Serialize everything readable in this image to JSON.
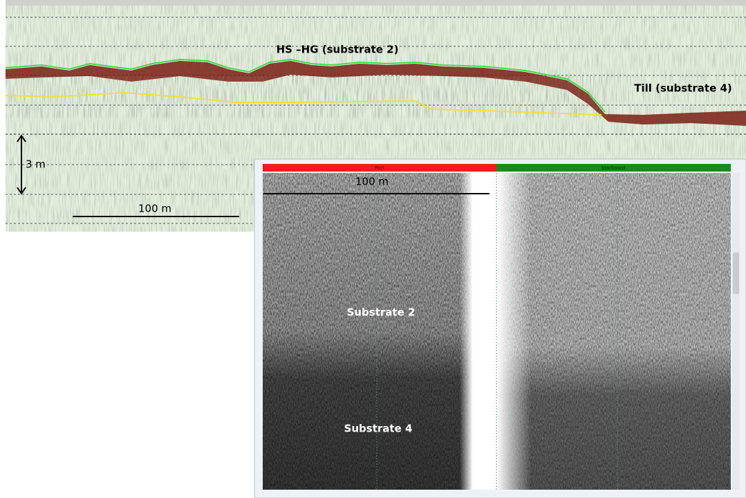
{
  "profile": {
    "top_label": "HS –HG (substrate 2)",
    "right_label": "Till (substrate 4)",
    "depth_scale": "3 m",
    "distance_scale": "100 m"
  },
  "sonar": {
    "port": "Port",
    "starboard": "Starboard",
    "distance_scale": "100 m",
    "upper_label": "Substrate 2",
    "lower_label": "Substrate 4"
  }
}
